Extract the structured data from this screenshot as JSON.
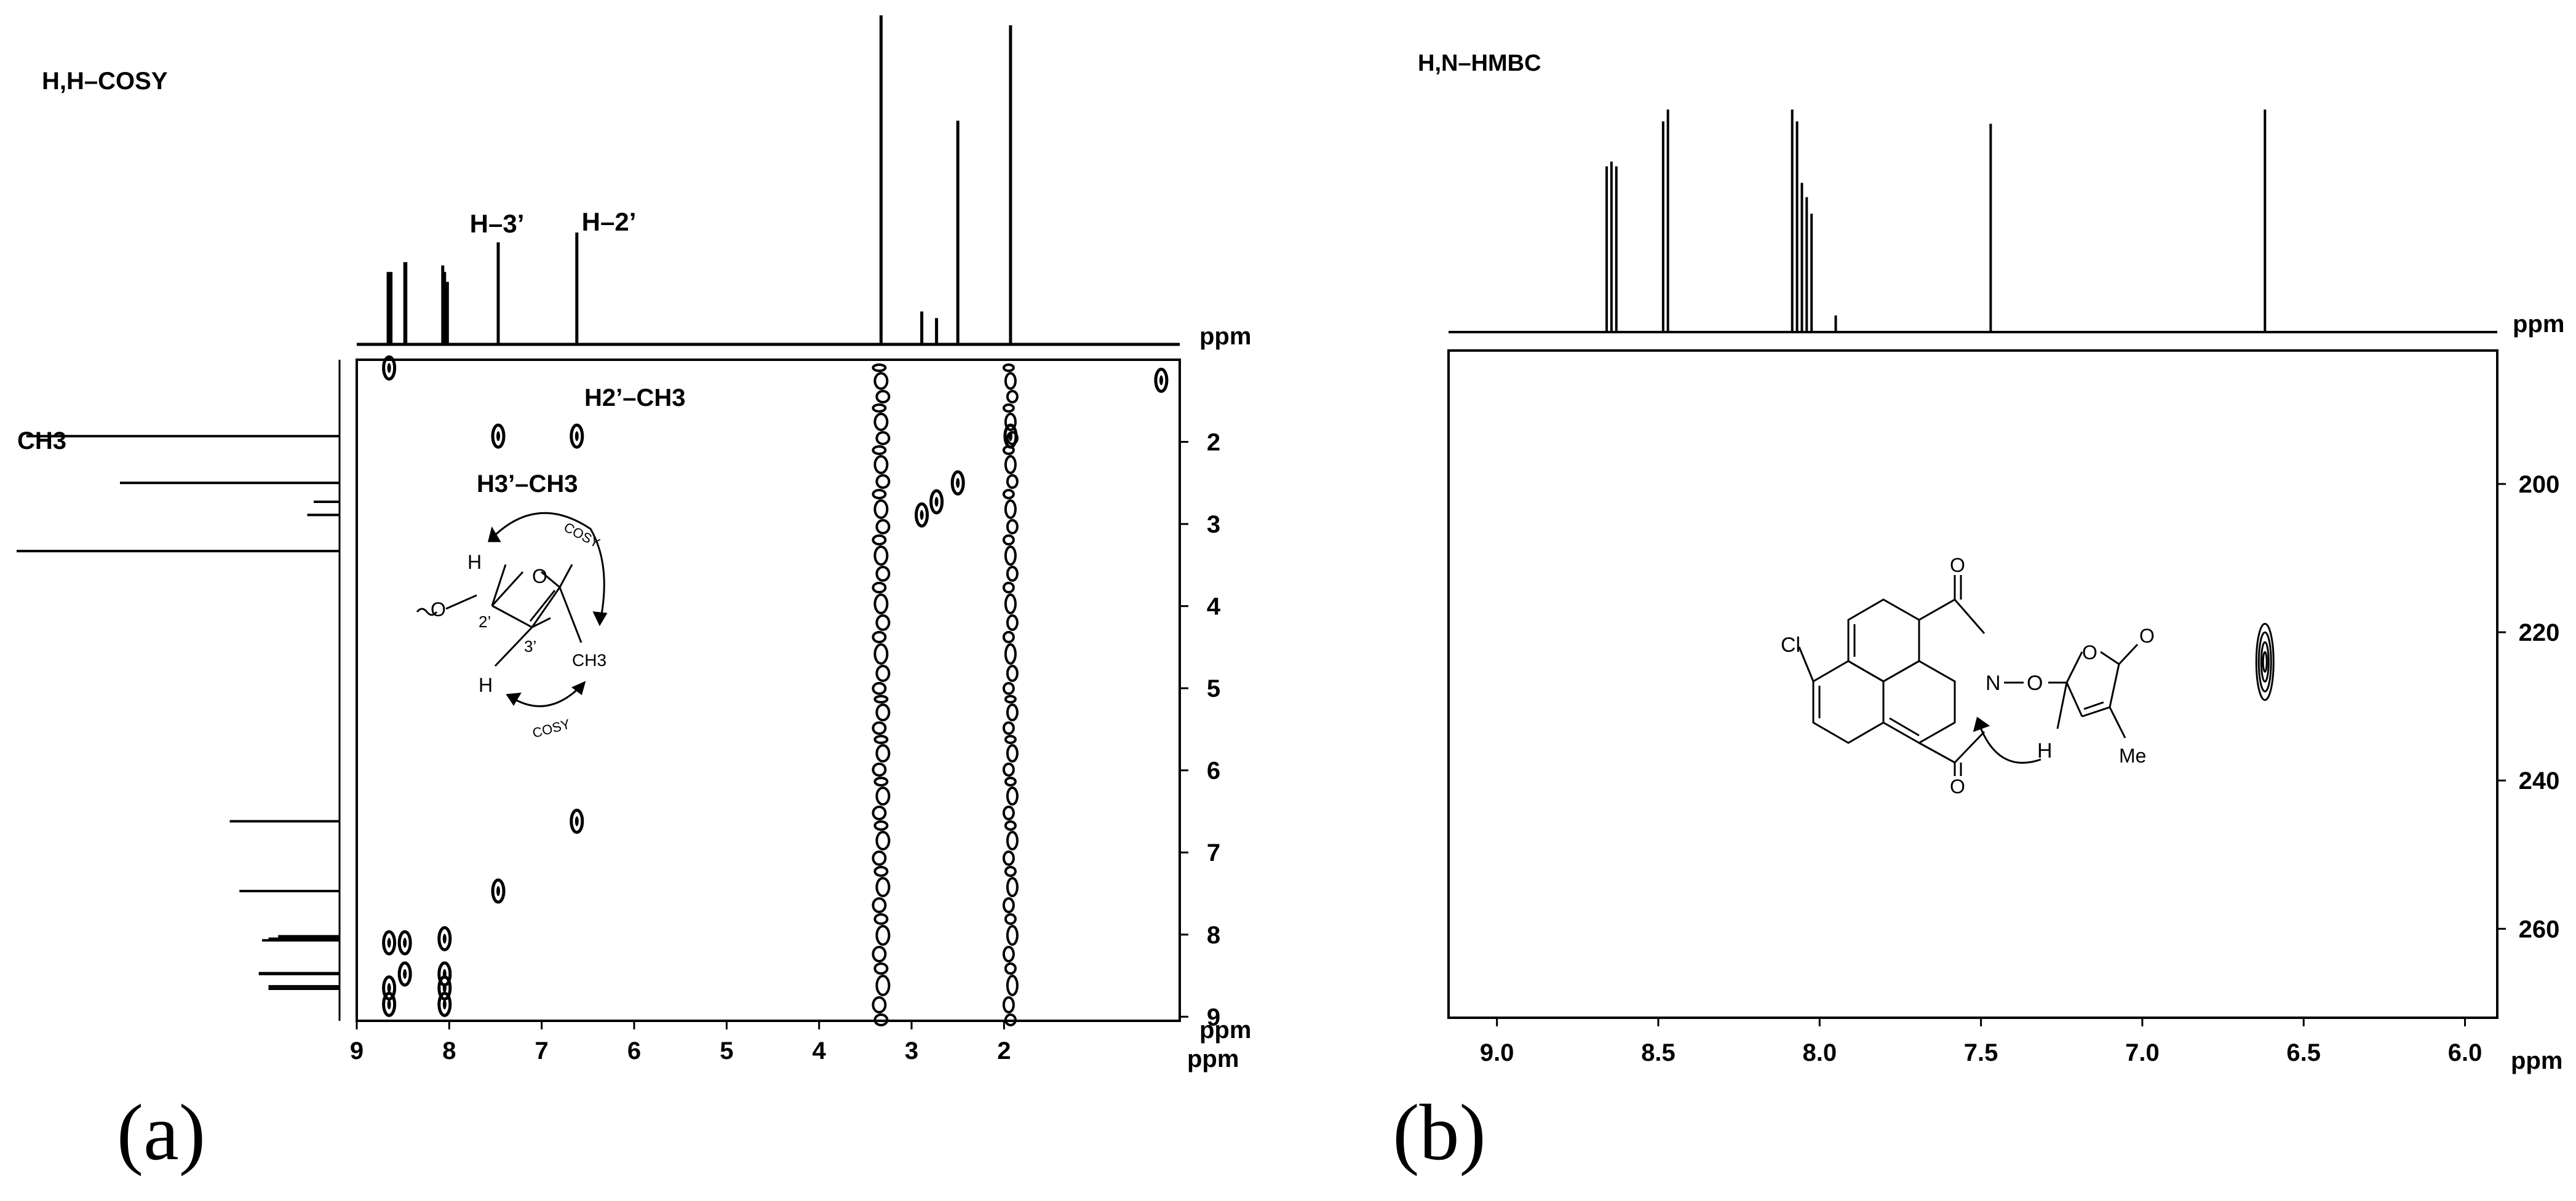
{
  "chart_data": [
    {
      "type": "scatter",
      "panel_label": "(a)",
      "title": "H,H–COSY",
      "xlabel": "ppm",
      "ylabel": "ppm",
      "xlim": [
        9,
        0.1
      ],
      "ylim": [
        1.0,
        9.05
      ],
      "x_ticks": [
        9,
        8,
        7,
        6,
        5,
        4,
        3,
        2
      ],
      "y_ticks": [
        2,
        3,
        4,
        5,
        6,
        7,
        8,
        9
      ],
      "top_spectrum": {
        "peaks": [
          {
            "ppm": 8.66,
            "h": 0.22
          },
          {
            "ppm": 8.63,
            "h": 0.22
          },
          {
            "ppm": 8.48,
            "h": 0.25
          },
          {
            "ppm": 8.47,
            "h": 0.25
          },
          {
            "ppm": 8.07,
            "h": 0.24
          },
          {
            "ppm": 8.05,
            "h": 0.22
          },
          {
            "ppm": 8.02,
            "h": 0.19
          },
          {
            "ppm": 7.47,
            "h": 0.31
          },
          {
            "ppm": 6.62,
            "h": 0.34
          },
          {
            "ppm": 3.33,
            "h": 1.0
          },
          {
            "ppm": 2.89,
            "h": 0.1
          },
          {
            "ppm": 2.73,
            "h": 0.08
          },
          {
            "ppm": 2.5,
            "h": 0.68
          },
          {
            "ppm": 1.93,
            "h": 0.97
          }
        ],
        "labels": [
          {
            "text": "H–3’",
            "ppm": 7.47
          },
          {
            "text": "H–2’",
            "ppm": 6.62
          }
        ]
      },
      "left_spectrum_label": "CH3",
      "cross_peaks": [
        {
          "x": 8.65,
          "y": 8.65
        },
        {
          "x": 8.48,
          "y": 8.48
        },
        {
          "x": 8.05,
          "y": 8.05
        },
        {
          "x": 8.65,
          "y": 8.1
        },
        {
          "x": 8.48,
          "y": 8.1
        },
        {
          "x": 8.05,
          "y": 8.65
        },
        {
          "x": 8.05,
          "y": 8.48
        },
        {
          "x": 8.65,
          "y": 8.85
        },
        {
          "x": 8.05,
          "y": 8.85
        },
        {
          "x": 7.47,
          "y": 7.47
        },
        {
          "x": 6.62,
          "y": 6.62
        },
        {
          "x": 7.47,
          "y": 1.93
        },
        {
          "x": 6.62,
          "y": 1.93
        },
        {
          "x": 2.5,
          "y": 2.5
        },
        {
          "x": 2.89,
          "y": 2.89
        },
        {
          "x": 2.73,
          "y": 2.73
        },
        {
          "x": 1.93,
          "y": 1.93
        },
        {
          "x": 0.3,
          "y": 1.25
        },
        {
          "x": 8.65,
          "y": 1.1
        }
      ],
      "annotations": [
        {
          "text": "H2’–CH3",
          "x": 6.62,
          "y": 1.93
        },
        {
          "text": "H3’–CH3",
          "x": 7.47,
          "y": 1.93
        }
      ],
      "structure": {
        "labels": [
          "H",
          "O",
          "O",
          "2’",
          "3’",
          "H",
          "CH3",
          "COSY",
          "COSY"
        ]
      }
    },
    {
      "type": "scatter",
      "panel_label": "(b)",
      "title": "H,N–HMBC",
      "xlabel": "ppm",
      "ylabel": "ppm",
      "xlim": [
        9.15,
        5.9
      ],
      "ylim": [
        182,
        272
      ],
      "x_ticks": [
        9.0,
        8.5,
        8.0,
        7.5,
        7.0,
        6.5,
        6.0
      ],
      "y_ticks": [
        200,
        220,
        240,
        260
      ],
      "top_spectrum": {
        "peaks": [
          {
            "ppm": 8.66,
            "h": 0.7
          },
          {
            "ppm": 8.645,
            "h": 0.72
          },
          {
            "ppm": 8.63,
            "h": 0.7
          },
          {
            "ppm": 8.485,
            "h": 0.89
          },
          {
            "ppm": 8.47,
            "h": 0.94
          },
          {
            "ppm": 8.085,
            "h": 0.94
          },
          {
            "ppm": 8.07,
            "h": 0.89
          },
          {
            "ppm": 8.055,
            "h": 0.63
          },
          {
            "ppm": 8.04,
            "h": 0.57
          },
          {
            "ppm": 8.025,
            "h": 0.5
          },
          {
            "ppm": 7.95,
            "h": 0.07
          },
          {
            "ppm": 7.47,
            "h": 0.88
          },
          {
            "ppm": 6.62,
            "h": 0.94
          }
        ]
      },
      "cross_peaks": [
        {
          "x": 6.62,
          "y": 224
        }
      ],
      "structure": {
        "labels": [
          "Cl",
          "O",
          "N",
          "O",
          "O",
          "O",
          "O",
          "H",
          "Me"
        ]
      }
    }
  ]
}
